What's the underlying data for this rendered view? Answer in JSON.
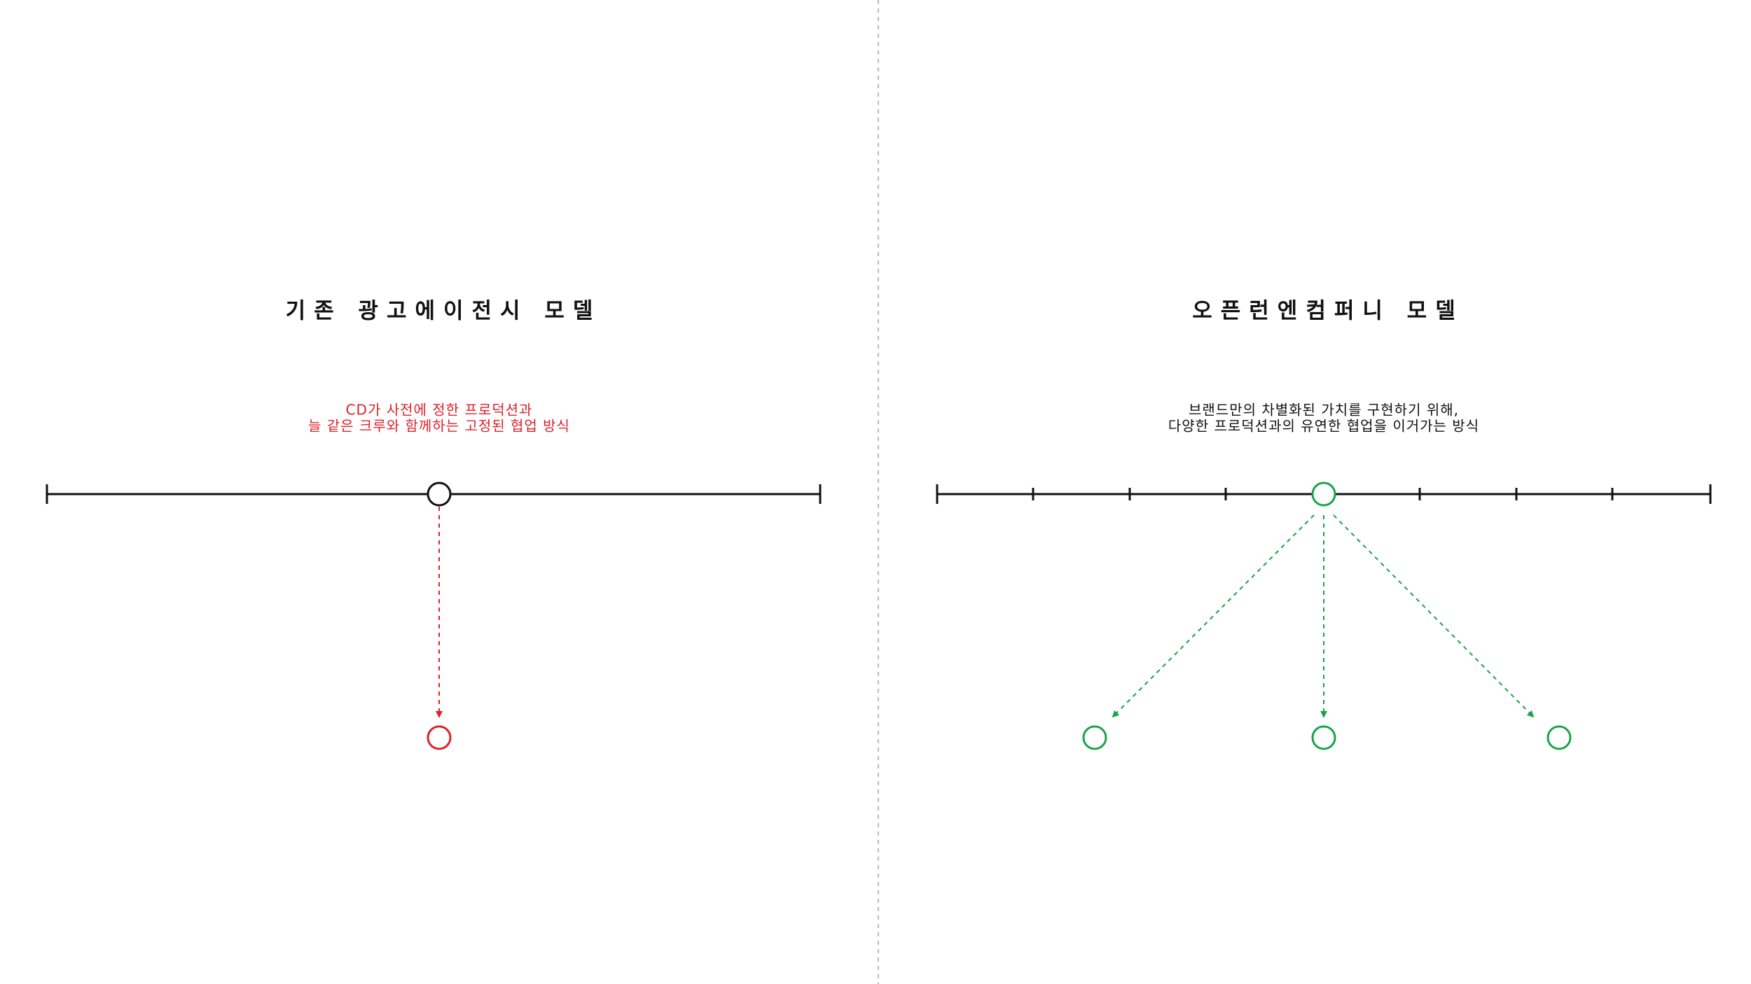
{
  "left": {
    "title": "기존 광고에이전시 모델",
    "caption": [
      "CD가 사전에 정한 프로덕션과",
      "늘 같은 크루와 함께하는 고정된 협업 방식"
    ]
  },
  "right": {
    "title": "오픈런엔컴퍼니 모델",
    "caption": [
      "브랜드만의 차별화된 가치를 구현하기 위해,",
      "다양한 프로덕션과의 유연한 협업을 이거가는 방식"
    ]
  }
}
